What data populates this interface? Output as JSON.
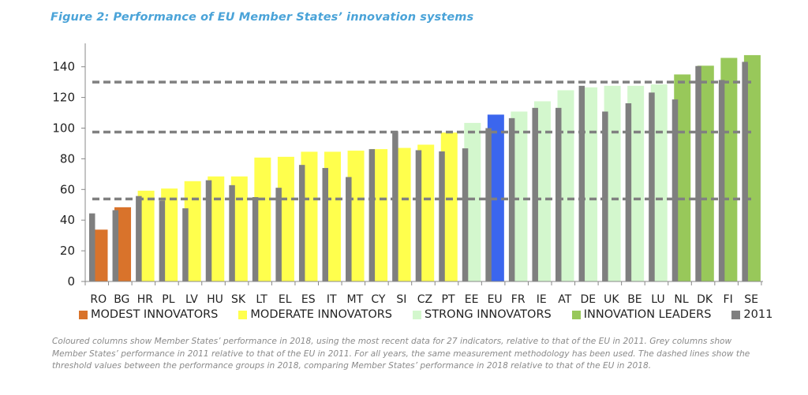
{
  "chart_data": {
    "type": "bar",
    "title": "Figure 2: Performance of EU Member States’ innovation systems",
    "xlabel": "",
    "ylabel": "",
    "ylim": [
      0,
      150
    ],
    "yticks": [
      0,
      20,
      40,
      60,
      80,
      100,
      120,
      140
    ],
    "grid": false,
    "legend_position": "bottom",
    "categories": [
      "RO",
      "BG",
      "HR",
      "PL",
      "LV",
      "HU",
      "SK",
      "LT",
      "EL",
      "ES",
      "IT",
      "MT",
      "CY",
      "SI",
      "CZ",
      "PT",
      "EE",
      "EU",
      "FR",
      "IE",
      "AT",
      "DE",
      "UK",
      "BE",
      "LU",
      "NL",
      "DK",
      "FI",
      "SE"
    ],
    "groups": [
      "modest",
      "modest",
      "moderate",
      "moderate",
      "moderate",
      "moderate",
      "moderate",
      "moderate",
      "moderate",
      "moderate",
      "moderate",
      "moderate",
      "moderate",
      "moderate",
      "moderate",
      "moderate",
      "strong",
      "eu",
      "strong",
      "strong",
      "strong",
      "strong",
      "strong",
      "strong",
      "strong",
      "leader",
      "leader",
      "leader",
      "leader"
    ],
    "series": [
      {
        "name": "2018",
        "values": [
          33.8,
          48.4,
          59.2,
          60.6,
          65.4,
          68.5,
          68.5,
          80.8,
          81.3,
          84.6,
          84.6,
          85.3,
          86.3,
          87.1,
          89.2,
          97.1,
          103.4,
          108.8,
          110.8,
          117.5,
          124.7,
          126.6,
          127.6,
          127.6,
          128.5,
          135.0,
          140.7,
          145.8,
          147.6
        ]
      },
      {
        "name": "2011",
        "values": [
          44.4,
          46.5,
          55.7,
          52.8,
          47.7,
          66.0,
          62.8,
          55.0,
          61.1,
          76.0,
          74.0,
          68.1,
          86.3,
          98.0,
          85.6,
          84.8,
          86.8,
          100.0,
          106.5,
          113.2,
          113.2,
          127.6,
          110.8,
          116.2,
          123.2,
          118.7,
          140.5,
          131.4,
          143.2
        ]
      }
    ],
    "thresholds": [
      53.8,
      97.4,
      130.0
    ],
    "colors": {
      "modest": "#d9732b",
      "moderate": "#ffff4d",
      "strong": "#d3f7cd",
      "leader": "#98c85a",
      "eu": "#3b66ee",
      "2011": "#7f7f7f",
      "threshold": "#808080"
    },
    "legend": [
      {
        "key": "modest",
        "label": "MODEST INNOVATORS"
      },
      {
        "key": "moderate",
        "label": "MODERATE INNOVATORS"
      },
      {
        "key": "strong",
        "label": "STRONG INNOVATORS"
      },
      {
        "key": "leader",
        "label": "INNOVATION LEADERS"
      },
      {
        "key": "2011",
        "label": "2011"
      }
    ]
  },
  "caption": "Coloured columns show Member States’ performance in 2018, using the most recent data for 27 indicators, relative to that of the EU in 2011. Grey columns show Member States’ performance in 2011 relative to that of the EU in 2011. For all years, the same measurement methodology has been used. The dashed lines show the threshold values between the performance groups in 2018, comparing Member States’ performance in 2018 relative to that of the EU in 2018."
}
